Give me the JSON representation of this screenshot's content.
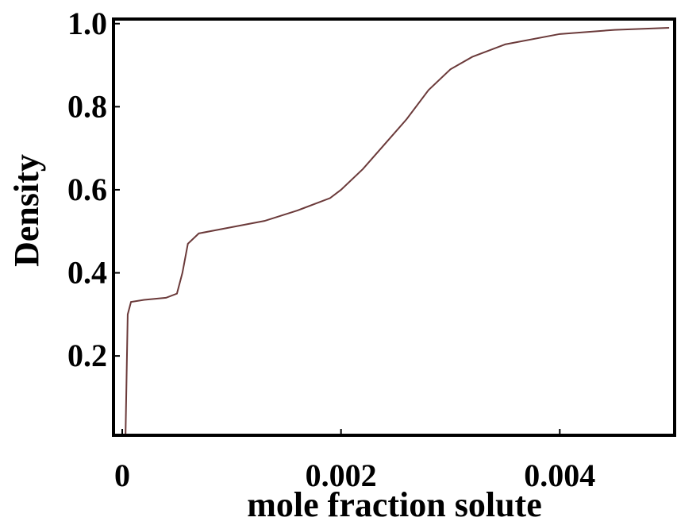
{
  "chart_data": {
    "type": "line",
    "x_label": "mole fraction solute",
    "y_label": "Density",
    "xlim": [
      -8e-05,
      0.00505
    ],
    "ylim": [
      0.009,
      1.011
    ],
    "xticks": [
      0,
      0.002,
      0.004
    ],
    "yticks": [
      0.2,
      0.4,
      0.6,
      0.8,
      {
        "value": 1.0,
        "label": "1.0"
      }
    ],
    "series": [
      {
        "color": "#6b3a3a",
        "x": [
          3e-05,
          5e-05,
          8e-05,
          0.0002,
          0.0004,
          0.0005,
          0.00055,
          0.0006,
          0.0007,
          0.001,
          0.0013,
          0.0016,
          0.0019,
          0.002,
          0.0022,
          0.0024,
          0.0026,
          0.0028,
          0.003,
          0.0032,
          0.0035,
          0.004,
          0.0045,
          0.005
        ],
        "values": [
          0.01,
          0.3,
          0.33,
          0.335,
          0.34,
          0.35,
          0.4,
          0.47,
          0.495,
          0.51,
          0.525,
          0.55,
          0.58,
          0.6,
          0.65,
          0.71,
          0.77,
          0.84,
          0.89,
          0.92,
          0.95,
          0.975,
          0.985,
          0.99
        ]
      }
    ]
  }
}
